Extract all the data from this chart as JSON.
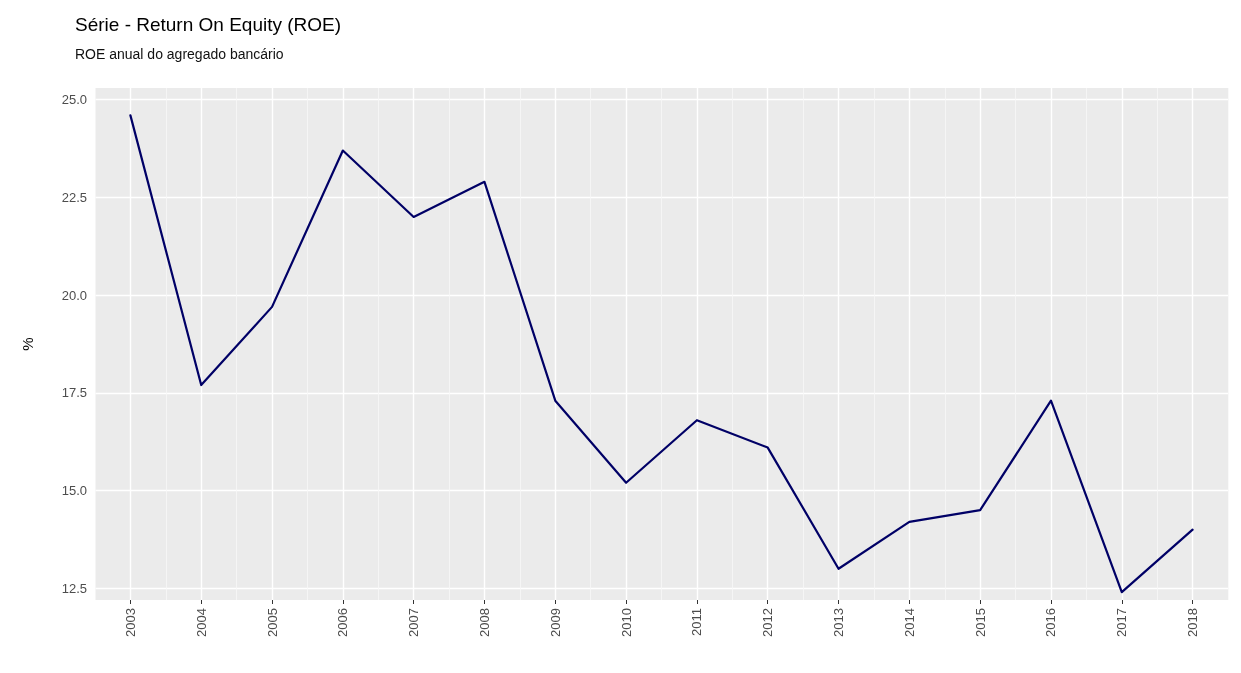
{
  "chart_data": {
    "type": "line",
    "title": "Série - Return On Equity (ROE)",
    "subtitle": "ROE anual do agregado bancário",
    "ylabel": "%",
    "categories": [
      "2003",
      "2004",
      "2005",
      "2006",
      "2007",
      "2008",
      "2009",
      "2010",
      "2011",
      "2012",
      "2013",
      "2014",
      "2015",
      "2016",
      "2017",
      "2018"
    ],
    "series": [
      {
        "color": "#000066",
        "values": [
          24.6,
          17.7,
          19.7,
          23.7,
          22.0,
          22.9,
          17.3,
          15.2,
          16.8,
          16.1,
          13.0,
          14.2,
          14.5,
          17.3,
          12.4,
          14.0
        ]
      }
    ],
    "ylim": [
      12.2,
      25.3
    ],
    "yticks": [
      {
        "value": 12.5,
        "label": "12.5"
      },
      {
        "value": 15,
        "label": "15.0"
      },
      {
        "value": 17.5,
        "label": "17.5"
      },
      {
        "value": 20,
        "label": "20.0"
      },
      {
        "value": 22.5,
        "label": "22.5"
      },
      {
        "value": 25,
        "label": "25.0"
      }
    ],
    "grid": true,
    "marker": "none",
    "line_style": "solid"
  }
}
